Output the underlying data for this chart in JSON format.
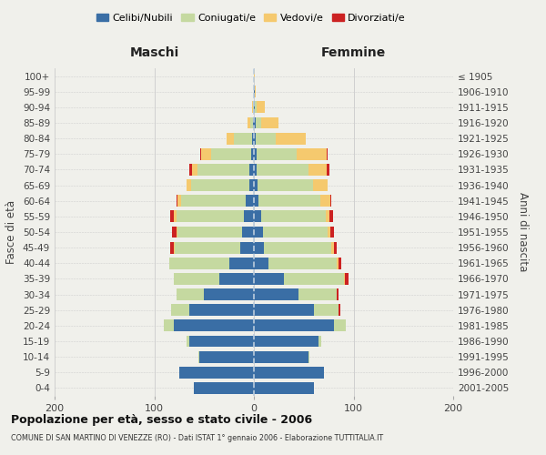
{
  "age_groups": [
    "0-4",
    "5-9",
    "10-14",
    "15-19",
    "20-24",
    "25-29",
    "30-34",
    "35-39",
    "40-44",
    "45-49",
    "50-54",
    "55-59",
    "60-64",
    "65-69",
    "70-74",
    "75-79",
    "80-84",
    "85-89",
    "90-94",
    "95-99",
    "100+"
  ],
  "birth_years": [
    "2001-2005",
    "1996-2000",
    "1991-1995",
    "1986-1990",
    "1981-1985",
    "1976-1980",
    "1971-1975",
    "1966-1970",
    "1961-1965",
    "1956-1960",
    "1951-1955",
    "1946-1950",
    "1941-1945",
    "1936-1940",
    "1931-1935",
    "1926-1930",
    "1921-1925",
    "1916-1920",
    "1911-1915",
    "1906-1910",
    "≤ 1905"
  ],
  "colors": {
    "celibi": "#3a6ea5",
    "coniugati": "#c5d9a0",
    "vedovi": "#f5c96e",
    "divorziati": "#cc2222"
  },
  "maschi": {
    "celibi": [
      60,
      75,
      55,
      65,
      80,
      65,
      50,
      35,
      25,
      14,
      12,
      10,
      8,
      5,
      5,
      3,
      2,
      1,
      0,
      0,
      0
    ],
    "coniugati": [
      0,
      0,
      1,
      3,
      10,
      18,
      28,
      45,
      60,
      65,
      65,
      68,
      65,
      58,
      52,
      40,
      18,
      3,
      1,
      0,
      0
    ],
    "vedovi": [
      0,
      0,
      0,
      0,
      0,
      0,
      0,
      0,
      0,
      1,
      1,
      2,
      4,
      5,
      5,
      10,
      7,
      2,
      1,
      0,
      0
    ],
    "divorziati": [
      0,
      0,
      0,
      0,
      0,
      0,
      0,
      0,
      0,
      4,
      4,
      4,
      1,
      0,
      3,
      1,
      0,
      0,
      0,
      0,
      0
    ]
  },
  "femmine": {
    "celibi": [
      60,
      70,
      55,
      65,
      80,
      60,
      45,
      30,
      15,
      10,
      9,
      7,
      5,
      4,
      3,
      3,
      2,
      2,
      1,
      1,
      0
    ],
    "coniugati": [
      0,
      0,
      1,
      3,
      12,
      25,
      38,
      60,
      68,
      68,
      65,
      65,
      62,
      55,
      52,
      40,
      20,
      5,
      2,
      0,
      0
    ],
    "vedovi": [
      0,
      0,
      0,
      0,
      0,
      0,
      0,
      1,
      2,
      2,
      3,
      4,
      10,
      15,
      18,
      30,
      30,
      18,
      8,
      1,
      1
    ],
    "divorziati": [
      0,
      0,
      0,
      0,
      0,
      2,
      2,
      4,
      3,
      3,
      3,
      3,
      1,
      0,
      3,
      1,
      0,
      0,
      0,
      0,
      0
    ]
  },
  "xlim": 200,
  "title": "Popolazione per età, sesso e stato civile - 2006",
  "subtitle": "COMUNE DI SAN MARTINO DI VENEZZE (RO) - Dati ISTAT 1° gennaio 2006 - Elaborazione TUTTITALIA.IT",
  "ylabel_left": "Fasce di età",
  "ylabel_right": "Anni di nascita",
  "xlabel_maschi": "Maschi",
  "xlabel_femmine": "Femmine",
  "legend_labels": [
    "Celibi/Nubili",
    "Coniugati/e",
    "Vedovi/e",
    "Divorziati/e"
  ],
  "background_color": "#f0f0eb",
  "grid_color": "#d0d0d0",
  "maschi_label_color": "#222222",
  "femmine_label_color": "#222222"
}
